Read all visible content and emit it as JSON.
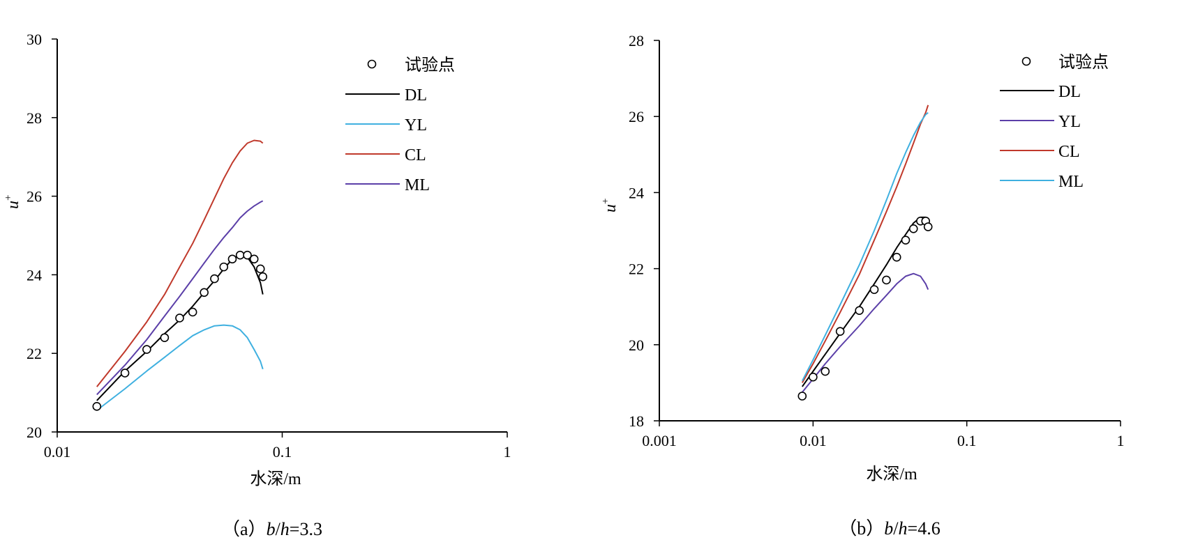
{
  "chart_data": [
    {
      "type": "line",
      "caption": {
        "prefix": "（a）",
        "b": "b",
        "slash": "/",
        "h": "h",
        "eq": "=3.3"
      },
      "xlabel": "水深/m",
      "ylabel": {
        "base": "u",
        "sup": "+"
      },
      "xscale": "log",
      "xlim": [
        0.01,
        1
      ],
      "ylim": [
        20,
        30
      ],
      "xticks": [
        "0.01",
        "0.1",
        "1"
      ],
      "yticks": [
        "20",
        "22",
        "24",
        "26",
        "28",
        "30"
      ],
      "legend_position": "top-right",
      "legend": [
        {
          "name": "试验点",
          "kind": "marker"
        },
        {
          "name": "DL",
          "color": "#000000"
        },
        {
          "name": "YL",
          "color": "#3fb0e0"
        },
        {
          "name": "CL",
          "color": "#c0392b"
        },
        {
          "name": "ML",
          "color": "#5b3fa8"
        }
      ],
      "points": {
        "name": "试验点",
        "x": [
          0.015,
          0.02,
          0.025,
          0.03,
          0.035,
          0.04,
          0.045,
          0.05,
          0.055,
          0.06,
          0.065,
          0.07,
          0.075,
          0.08,
          0.082
        ],
        "y": [
          20.65,
          21.5,
          22.1,
          22.4,
          22.9,
          23.05,
          23.55,
          23.9,
          24.2,
          24.4,
          24.5,
          24.5,
          24.4,
          24.15,
          23.95
        ]
      },
      "series": [
        {
          "name": "DL",
          "color": "#000000",
          "x": [
            0.015,
            0.02,
            0.025,
            0.03,
            0.035,
            0.04,
            0.045,
            0.05,
            0.055,
            0.06,
            0.065,
            0.07,
            0.075,
            0.08,
            0.082
          ],
          "y": [
            20.8,
            21.55,
            22.05,
            22.5,
            22.85,
            23.2,
            23.55,
            23.85,
            24.15,
            24.4,
            24.5,
            24.45,
            24.2,
            23.8,
            23.5
          ]
        },
        {
          "name": "YL",
          "color": "#3fb0e0",
          "x": [
            0.015,
            0.02,
            0.025,
            0.03,
            0.035,
            0.04,
            0.045,
            0.05,
            0.055,
            0.06,
            0.065,
            0.07,
            0.075,
            0.08,
            0.082
          ],
          "y": [
            20.55,
            21.1,
            21.55,
            21.9,
            22.2,
            22.45,
            22.6,
            22.7,
            22.72,
            22.7,
            22.6,
            22.4,
            22.1,
            21.8,
            21.6
          ]
        },
        {
          "name": "CL",
          "color": "#c0392b",
          "x": [
            0.015,
            0.02,
            0.025,
            0.03,
            0.035,
            0.04,
            0.045,
            0.05,
            0.055,
            0.06,
            0.065,
            0.07,
            0.075,
            0.08,
            0.082
          ],
          "y": [
            21.15,
            22.05,
            22.8,
            23.5,
            24.2,
            24.8,
            25.4,
            25.95,
            26.45,
            26.85,
            27.15,
            27.35,
            27.42,
            27.4,
            27.35
          ]
        },
        {
          "name": "ML",
          "color": "#5b3fa8",
          "x": [
            0.015,
            0.02,
            0.025,
            0.03,
            0.035,
            0.04,
            0.045,
            0.05,
            0.055,
            0.06,
            0.065,
            0.07,
            0.075,
            0.08,
            0.082
          ],
          "y": [
            20.95,
            21.7,
            22.35,
            22.95,
            23.45,
            23.9,
            24.3,
            24.65,
            24.95,
            25.2,
            25.45,
            25.62,
            25.75,
            25.85,
            25.88
          ]
        }
      ]
    },
    {
      "type": "line",
      "caption": {
        "prefix": "（b）",
        "b": "b",
        "slash": "/",
        "h": "h",
        "eq": "=4.6"
      },
      "xlabel": "水深/m",
      "ylabel": {
        "base": "u",
        "sup": "+"
      },
      "xscale": "log",
      "xlim": [
        0.001,
        1
      ],
      "ylim": [
        18,
        28
      ],
      "xticks": [
        "0.001",
        "0.01",
        "0.1",
        "1"
      ],
      "yticks": [
        "18",
        "20",
        "22",
        "24",
        "26",
        "28"
      ],
      "legend_position": "top-right",
      "legend": [
        {
          "name": "试验点",
          "kind": "marker"
        },
        {
          "name": "DL",
          "color": "#000000"
        },
        {
          "name": "YL",
          "color": "#5b3fa8"
        },
        {
          "name": "CL",
          "color": "#c0392b"
        },
        {
          "name": "ML",
          "color": "#3fb0e0"
        }
      ],
      "points": {
        "name": "试验点",
        "x": [
          0.0085,
          0.01,
          0.012,
          0.015,
          0.02,
          0.025,
          0.03,
          0.035,
          0.04,
          0.045,
          0.05,
          0.054,
          0.056
        ],
        "y": [
          18.65,
          19.15,
          19.3,
          20.35,
          20.9,
          21.45,
          21.7,
          22.3,
          22.75,
          23.05,
          23.25,
          23.25,
          23.1
        ]
      },
      "series": [
        {
          "name": "DL",
          "color": "#000000",
          "x": [
            0.0085,
            0.01,
            0.012,
            0.015,
            0.02,
            0.025,
            0.03,
            0.035,
            0.04,
            0.045,
            0.05,
            0.054,
            0.056
          ],
          "y": [
            18.9,
            19.3,
            19.75,
            20.3,
            21.0,
            21.6,
            22.1,
            22.55,
            22.9,
            23.2,
            23.35,
            23.35,
            23.25
          ]
        },
        {
          "name": "YL",
          "color": "#5b3fa8",
          "x": [
            0.0085,
            0.01,
            0.012,
            0.015,
            0.02,
            0.025,
            0.03,
            0.035,
            0.04,
            0.045,
            0.05,
            0.054,
            0.056
          ],
          "y": [
            18.75,
            19.1,
            19.5,
            19.95,
            20.5,
            20.95,
            21.3,
            21.6,
            21.8,
            21.87,
            21.8,
            21.6,
            21.45
          ]
        },
        {
          "name": "CL",
          "color": "#c0392b",
          "x": [
            0.0085,
            0.01,
            0.012,
            0.015,
            0.02,
            0.025,
            0.03,
            0.035,
            0.04,
            0.045,
            0.05,
            0.054,
            0.056
          ],
          "y": [
            19.0,
            19.5,
            20.1,
            20.85,
            21.85,
            22.75,
            23.5,
            24.15,
            24.75,
            25.3,
            25.8,
            26.1,
            26.3
          ]
        },
        {
          "name": "ML",
          "color": "#3fb0e0",
          "x": [
            0.0085,
            0.01,
            0.012,
            0.015,
            0.02,
            0.025,
            0.03,
            0.035,
            0.04,
            0.045,
            0.05,
            0.054,
            0.056
          ],
          "y": [
            19.05,
            19.6,
            20.25,
            21.05,
            22.1,
            23.0,
            23.8,
            24.5,
            25.05,
            25.5,
            25.85,
            26.05,
            26.1
          ]
        }
      ]
    }
  ]
}
